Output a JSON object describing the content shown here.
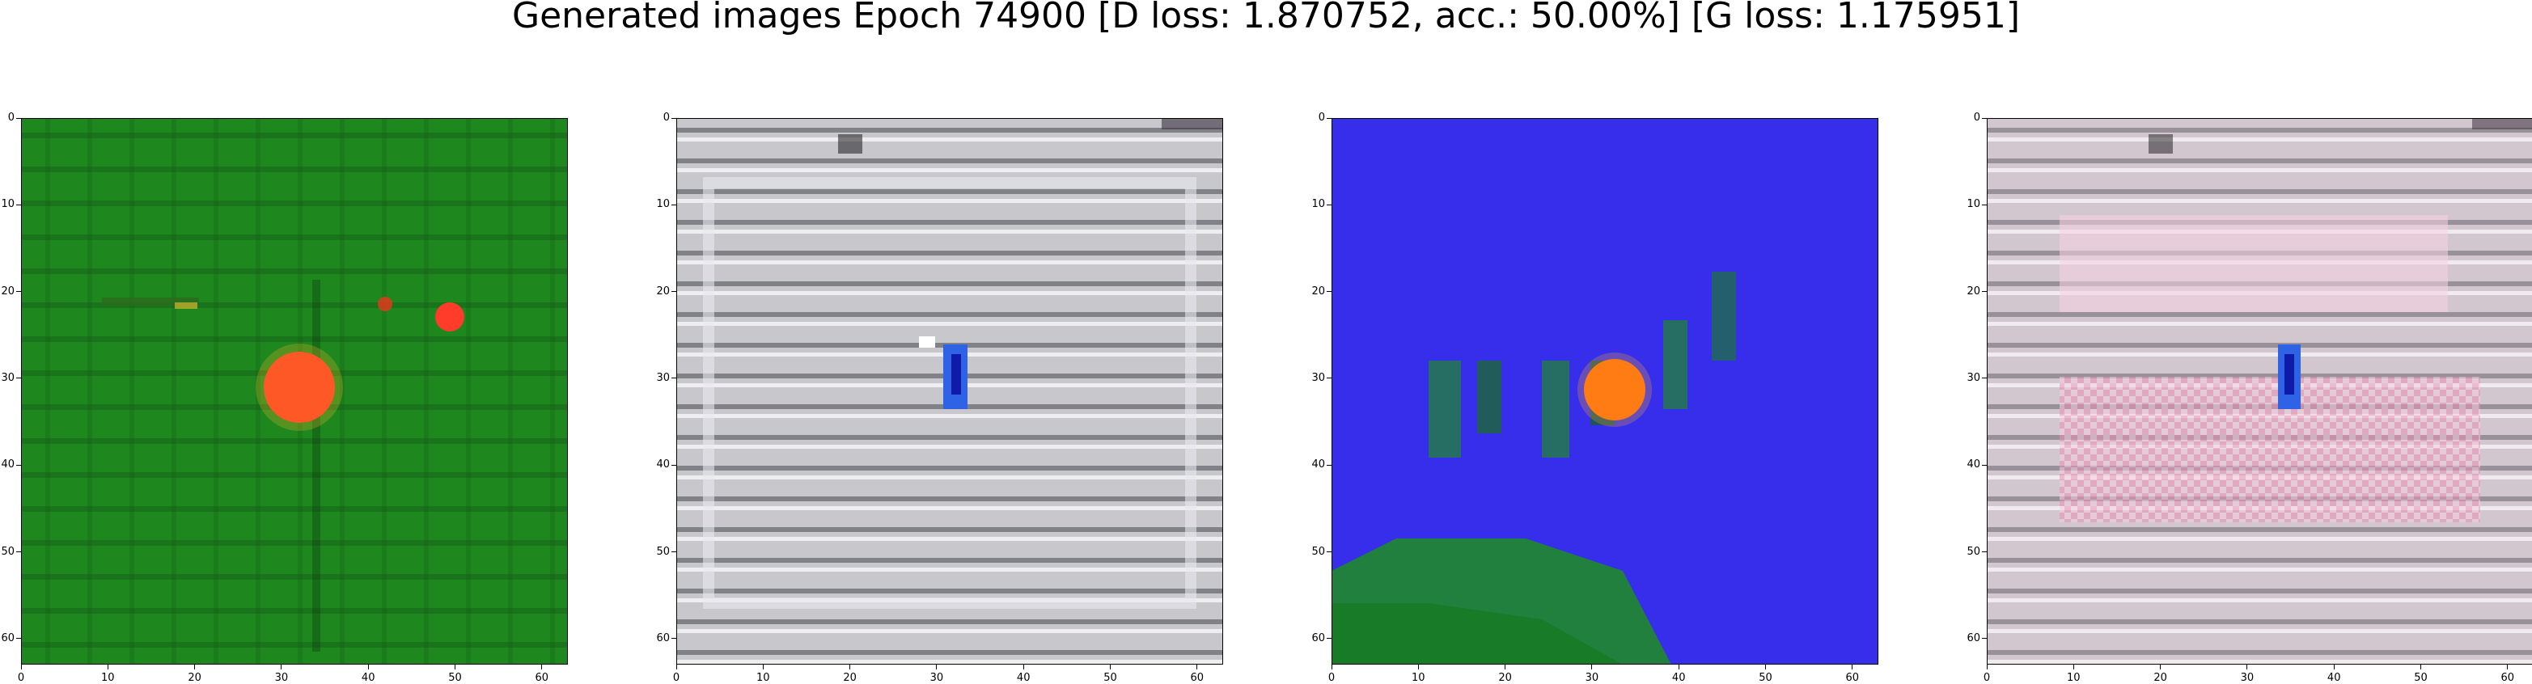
{
  "figure": {
    "title": "Generated images Epoch 74900 [D loss: 1.870752, acc.: 50.00%] [G loss: 1.175951]"
  },
  "axes": {
    "range": [
      0,
      63
    ],
    "ticks": [
      "0",
      "10",
      "20",
      "30",
      "40",
      "50",
      "60"
    ]
  },
  "panels": [
    {
      "name": "generated-image-1",
      "dominant_color": "#1d8a1d",
      "accent_color": "#ff3b2a",
      "description": "green tile with red blob"
    },
    {
      "name": "generated-image-2",
      "dominant_color": "#c9c9cf",
      "accent_color": "#2f63e6",
      "description": "grey tile with blue mark"
    },
    {
      "name": "generated-image-3",
      "dominant_color": "#3a2bf0",
      "accent_color": "#ff6a10",
      "description": "blue tile with orange blob and green shapes"
    },
    {
      "name": "generated-image-4",
      "dominant_color": "#d2c6cf",
      "accent_color": "#ee5a8c",
      "description": "grey-pink tile with blue mark"
    }
  ]
}
